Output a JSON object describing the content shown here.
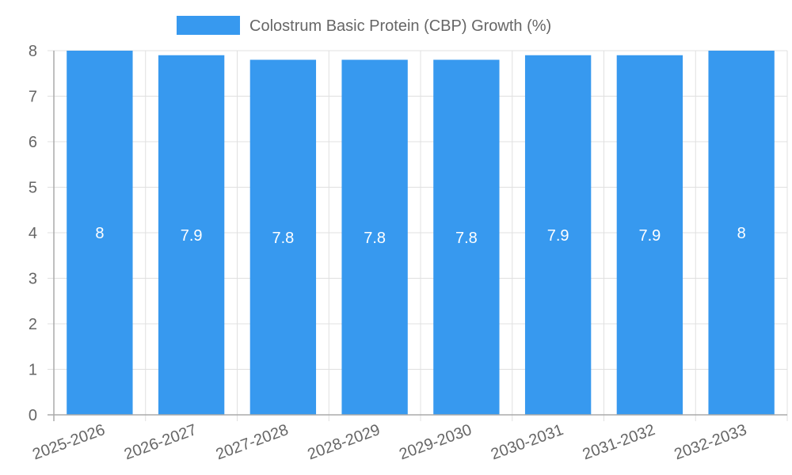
{
  "chart_data": {
    "type": "bar",
    "title": "",
    "xlabel": "",
    "ylabel": "",
    "legend": {
      "position": "top",
      "entries": [
        {
          "label": "Colostrum Basic Protein (CBP) Growth (%)",
          "color": "#3799ef"
        }
      ]
    },
    "categories": [
      "2025-2026",
      "2026-2027",
      "2027-2028",
      "2028-2029",
      "2029-2030",
      "2030-2031",
      "2031-2032",
      "2032-2033"
    ],
    "series": [
      {
        "name": "Colostrum Basic Protein (CBP) Growth (%)",
        "values": [
          8,
          7.9,
          7.8,
          7.8,
          7.8,
          7.9,
          7.9,
          8
        ],
        "color": "#3799ef"
      }
    ],
    "data_labels": [
      "8",
      "7.9",
      "7.8",
      "7.8",
      "7.8",
      "7.9",
      "7.9",
      "8"
    ],
    "ylim": [
      0,
      8
    ],
    "yticks": [
      0,
      1,
      2,
      3,
      4,
      5,
      6,
      7,
      8
    ],
    "grid": true,
    "x_tick_rotation": -20
  },
  "colors": {
    "bar": "#3799ef",
    "grid": "#e0e0e0",
    "axis": "#aaaaaa",
    "text": "#666666",
    "bar_label": "#ffffff"
  }
}
